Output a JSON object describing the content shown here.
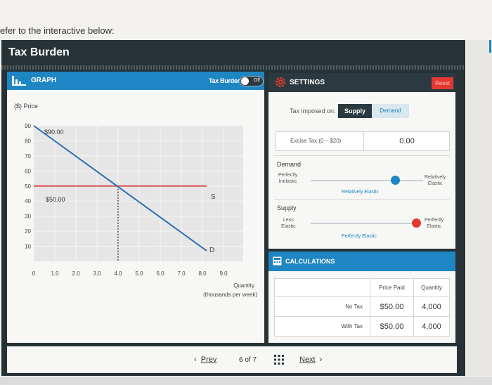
{
  "intro_text": "efer to the interactive below:",
  "title": "Tax Burden",
  "graph": {
    "header_label": "GRAPH",
    "toggle_label": "Tax Burden",
    "toggle_state": "Off",
    "y_label": "($) Price",
    "x_label_line1": "Quantity",
    "x_label_line2": "(thousands per week)",
    "y_ticks": [
      "90",
      "80",
      "70",
      "60",
      "50",
      "40",
      "30",
      "20",
      "10"
    ],
    "x_ticks": [
      "0",
      "1.0",
      "2.0",
      "3.0",
      "4.0",
      "5.0",
      "6.0",
      "7.0",
      "8.0",
      "9.0"
    ],
    "price_label_high": "$90.00",
    "price_label_eq": "$50.00",
    "supply_label": "S",
    "demand_label": "D"
  },
  "settings": {
    "header_label": "SETTINGS",
    "reset_label": "Reset",
    "tax_imposed_label": "Tax imposed on:",
    "supply_option": "Supply",
    "demand_option": "Demand",
    "excise_label": "Excise Tax (0 – $20)",
    "excise_value": "0.00",
    "demand_section": "Demand",
    "demand_left_1": "Perfectly",
    "demand_left_2": "Inelastic",
    "demand_right_1": "Relatively",
    "demand_right_2": "Elastic",
    "demand_current": "Relatively Elastic",
    "supply_section": "Supply",
    "supply_left_1": "Less",
    "supply_left_2": "Elastic",
    "supply_right_1": "Perfectly",
    "supply_right_2": "Elastic",
    "supply_current": "Perfectly Elastic",
    "demand_slider_level": 0.75,
    "supply_slider_level": 1.0
  },
  "calculations": {
    "header_label": "CALCULATIONS",
    "col_price_paid": "Price Paid",
    "col_quantity": "Quantity",
    "rows": [
      {
        "label": "No Tax",
        "price": "$50.00",
        "quantity": "4,000"
      },
      {
        "label": "With Tax",
        "price": "$50.00",
        "quantity": "4,000"
      }
    ]
  },
  "nav": {
    "prev_label": "Prev",
    "page_current": "6",
    "page_of": "of",
    "page_total": "7",
    "next_label": "Next"
  },
  "colors": {
    "accent_blue": "#1e86c2",
    "dark": "#2b3a40",
    "supply_line": "#d9534f",
    "reset_red": "#e3382e",
    "handle_blue": "#1e86c2",
    "handle_red": "#e3382e"
  },
  "chart_data": {
    "type": "line",
    "xlabel": "Quantity (thousands per week)",
    "ylabel": "($) Price",
    "xlim": [
      0,
      10
    ],
    "ylim": [
      0,
      90
    ],
    "series": [
      {
        "name": "S",
        "x": [
          0,
          8.2
        ],
        "y": [
          50,
          50
        ]
      },
      {
        "name": "D",
        "x": [
          0,
          8.2
        ],
        "y": [
          90,
          7
        ]
      }
    ],
    "equilibrium": {
      "x": 4.0,
      "y": 50
    },
    "annotations": [
      "$90.00",
      "$50.00"
    ]
  }
}
